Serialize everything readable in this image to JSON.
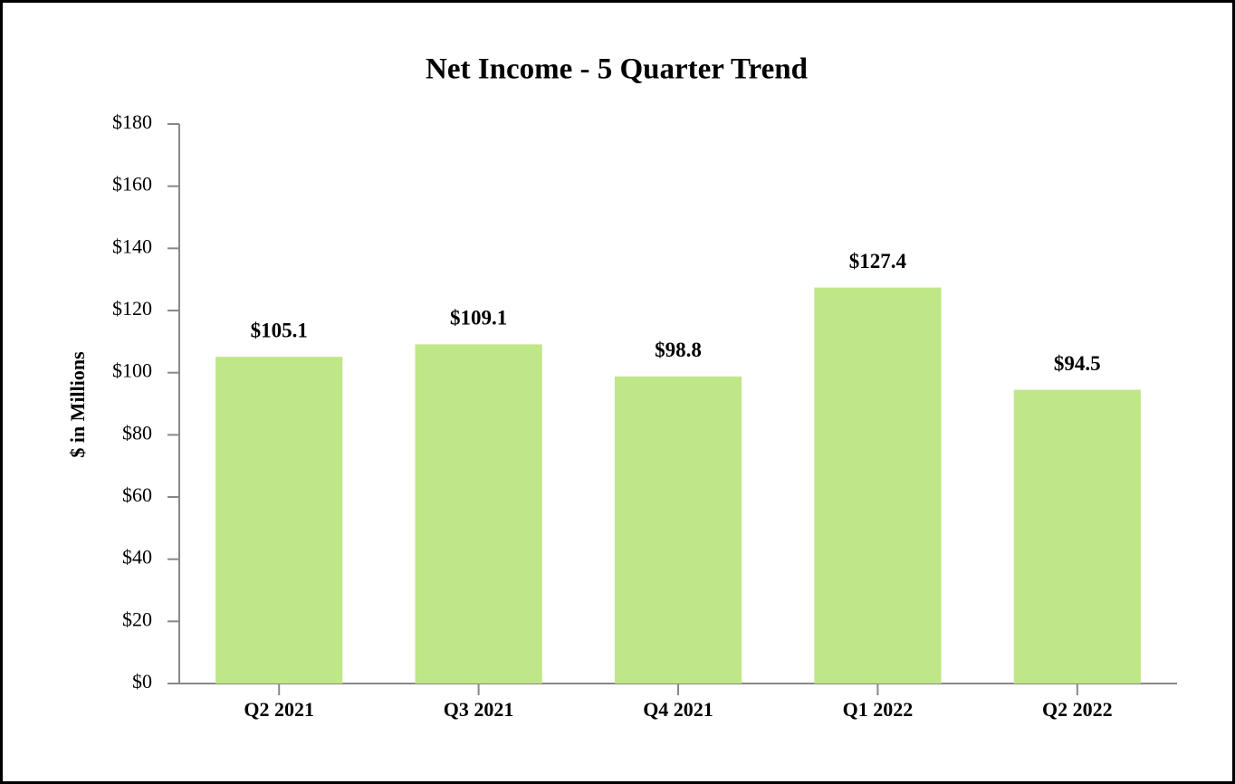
{
  "chart_data": {
    "type": "bar",
    "title": "Net Income - 5 Quarter Trend",
    "y_label": "$ in Millions",
    "categories": [
      "Q2 2021",
      "Q3 2021",
      "Q4 2021",
      "Q1 2022",
      "Q2 2022"
    ],
    "values": [
      105.1,
      109.1,
      98.8,
      127.4,
      94.5
    ],
    "value_labels": [
      "$105.1",
      "$109.1",
      "$98.8",
      "$127.4",
      "$94.5"
    ],
    "color": "#bfe687",
    "ylim": [
      0,
      180
    ],
    "yticks": [
      {
        "value": 0,
        "label": "$0"
      },
      {
        "value": 20,
        "label": "$20"
      },
      {
        "value": 40,
        "label": "$40"
      },
      {
        "value": 60,
        "label": "$60"
      },
      {
        "value": 80,
        "label": "$80"
      },
      {
        "value": 100,
        "label": "$100"
      },
      {
        "value": 120,
        "label": "$120"
      },
      {
        "value": 140,
        "label": "$140"
      },
      {
        "value": 160,
        "label": "$160"
      },
      {
        "value": 180,
        "label": "$180"
      }
    ],
    "grid": false
  }
}
